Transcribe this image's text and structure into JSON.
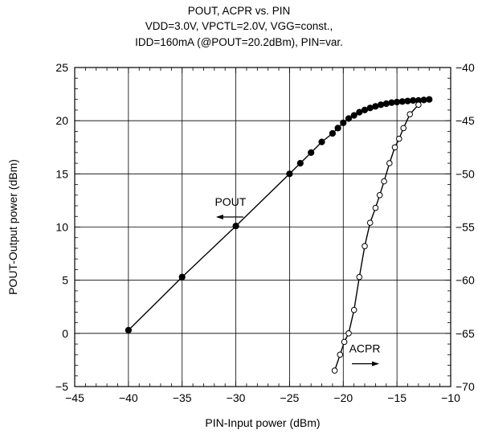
{
  "title_lines": [
    "POUT, ACPR vs. PIN",
    "VDD=3.0V, VPCTL=2.0V, VGG=const.,",
    "IDD=160mA (@POUT=20.2dBm), PIN=var."
  ],
  "chart_data": {
    "type": "line",
    "title": "POUT, ACPR vs. PIN",
    "subtitle": [
      "VDD=3.0V, VPCTL=2.0V, VGG=const.,",
      "IDD=160mA (@POUT=20.2dBm), PIN=var."
    ],
    "xlabel": "PIN-Input power (dBm)",
    "ylabel": "POUT-Output power (dBm)",
    "y2label": "",
    "xlim": [
      -45,
      -10
    ],
    "ylim": [
      -5,
      25
    ],
    "y2lim": [
      -70,
      -40
    ],
    "xticks": [
      -45,
      -40,
      -35,
      -30,
      -25,
      -20,
      -15,
      -10
    ],
    "yticks": [
      -5,
      0,
      5,
      10,
      15,
      20,
      25
    ],
    "y2ticks": [
      -70,
      -65,
      -60,
      -55,
      -50,
      -45,
      -40
    ],
    "grid": true,
    "series": [
      {
        "name": "POUT",
        "axis": "left",
        "marker": "filled-circle",
        "x": [
          -40,
          -35,
          -30,
          -25,
          -24,
          -23,
          -22,
          -21,
          -20.5,
          -20,
          -19.5,
          -19,
          -18.5,
          -18,
          -17.5,
          -17,
          -16.5,
          -16,
          -15.5,
          -15,
          -14.5,
          -14,
          -13.5,
          -13,
          -12.5,
          -12
        ],
        "y": [
          0.3,
          5.3,
          10.1,
          15.0,
          16.0,
          17.0,
          18.0,
          18.8,
          19.3,
          19.8,
          20.2,
          20.5,
          20.8,
          21.0,
          21.2,
          21.35,
          21.5,
          21.6,
          21.7,
          21.75,
          21.8,
          21.85,
          21.9,
          21.9,
          21.95,
          22.0
        ]
      },
      {
        "name": "ACPR",
        "axis": "right",
        "marker": "open-circle",
        "x": [
          -20.8,
          -20.3,
          -19.9,
          -19.5,
          -19.0,
          -18.5,
          -18.0,
          -17.5,
          -17.0,
          -16.6,
          -16.2,
          -15.7,
          -15.2,
          -14.8,
          -14.4,
          -13.8,
          -13.0
        ],
        "y": [
          -68.5,
          -67.0,
          -65.8,
          -65.0,
          -62.8,
          -59.7,
          -56.8,
          -54.6,
          -53.2,
          -52.0,
          -50.7,
          -49.0,
          -47.5,
          -46.7,
          -45.7,
          -44.4,
          -43.5
        ]
      }
    ],
    "annotations": [
      {
        "text": "POUT",
        "x": -30.5,
        "y": 12.0,
        "axis": "left",
        "arrow": "left"
      },
      {
        "text": "ACPR",
        "x": -18.0,
        "y": -1.8,
        "axis": "left",
        "arrow": "right"
      }
    ]
  }
}
